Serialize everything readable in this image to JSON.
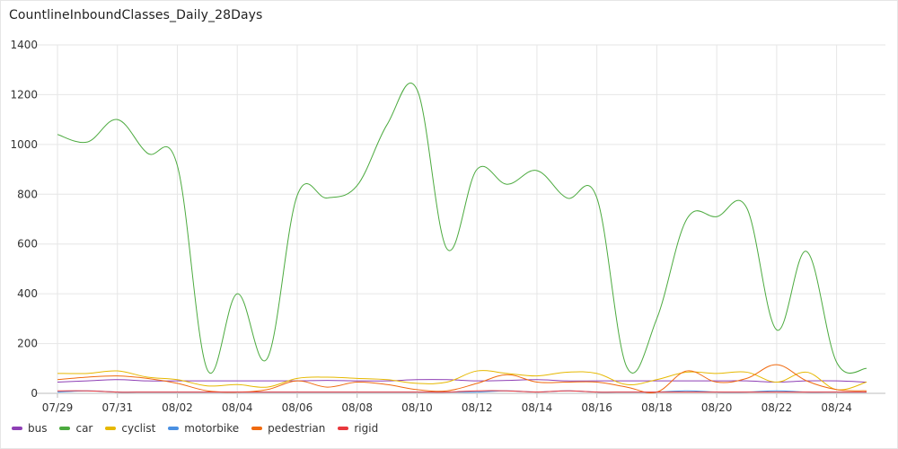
{
  "title": "CountlineInboundClasses_Daily_28Days",
  "chart_data": {
    "type": "line",
    "title": "CountlineInboundClasses_Daily_28Days",
    "x": [
      "07/29",
      "07/30",
      "07/31",
      "08/01",
      "08/02",
      "08/03",
      "08/04",
      "08/05",
      "08/06",
      "08/07",
      "08/08",
      "08/09",
      "08/10",
      "08/11",
      "08/12",
      "08/13",
      "08/14",
      "08/15",
      "08/16",
      "08/17",
      "08/18",
      "08/19",
      "08/20",
      "08/21",
      "08/22",
      "08/23",
      "08/24",
      "08/25"
    ],
    "x_tick_labels": [
      "07/29",
      "07/31",
      "08/02",
      "08/04",
      "08/06",
      "08/08",
      "08/10",
      "08/12",
      "08/14",
      "08/16",
      "08/18",
      "08/20",
      "08/22",
      "08/24"
    ],
    "ylim": [
      0,
      1400
    ],
    "y_ticks": [
      0,
      200,
      400,
      600,
      800,
      1000,
      1200,
      1400
    ],
    "grid": true,
    "legend_position": "bottom-left",
    "series": [
      {
        "name": "bus",
        "color": "#8e3fb5",
        "values": [
          45,
          50,
          55,
          50,
          50,
          50,
          50,
          50,
          50,
          52,
          50,
          50,
          55,
          55,
          50,
          52,
          55,
          50,
          50,
          50,
          50,
          50,
          50,
          50,
          45,
          50,
          50,
          45
        ]
      },
      {
        "name": "car",
        "color": "#4caa3f",
        "values": [
          1040,
          1010,
          1100,
          965,
          915,
          95,
          400,
          140,
          795,
          785,
          835,
          1080,
          1220,
          580,
          900,
          840,
          895,
          785,
          785,
          105,
          300,
          700,
          710,
          745,
          255,
          570,
          125,
          100
        ]
      },
      {
        "name": "cyclist",
        "color": "#e6b800",
        "values": [
          80,
          80,
          90,
          65,
          55,
          30,
          35,
          25,
          60,
          65,
          60,
          55,
          40,
          45,
          90,
          80,
          70,
          85,
          80,
          35,
          55,
          85,
          80,
          85,
          45,
          85,
          15,
          45
        ]
      },
      {
        "name": "motorbike",
        "color": "#4a90e2",
        "values": [
          5,
          10,
          5,
          5,
          5,
          5,
          5,
          5,
          5,
          5,
          5,
          5,
          5,
          5,
          5,
          10,
          5,
          10,
          5,
          5,
          5,
          10,
          5,
          5,
          10,
          5,
          5,
          5
        ]
      },
      {
        "name": "pedestrian",
        "color": "#f06a0f",
        "values": [
          55,
          65,
          70,
          60,
          40,
          10,
          5,
          15,
          50,
          25,
          45,
          35,
          15,
          10,
          40,
          75,
          45,
          45,
          45,
          25,
          5,
          90,
          45,
          60,
          115,
          50,
          15,
          10
        ]
      },
      {
        "name": "rigid",
        "color": "#e8383d",
        "values": [
          10,
          10,
          5,
          5,
          5,
          5,
          5,
          5,
          5,
          5,
          5,
          5,
          5,
          5,
          10,
          10,
          5,
          10,
          5,
          5,
          5,
          5,
          5,
          5,
          5,
          5,
          5,
          5
        ]
      }
    ]
  }
}
